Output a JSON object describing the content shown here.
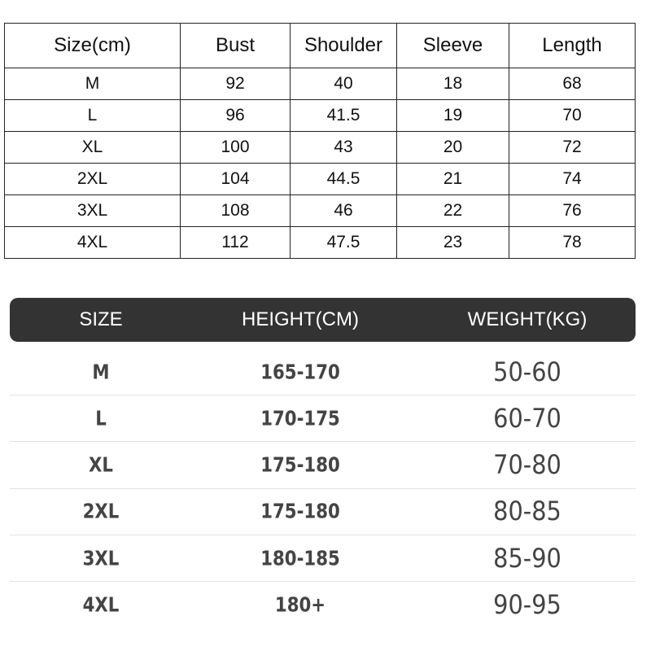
{
  "measurements": {
    "headers": [
      "Size(cm)",
      "Bust",
      "Shoulder",
      "Sleeve",
      "Length"
    ],
    "rows": [
      [
        "M",
        "92",
        "40",
        "18",
        "68"
      ],
      [
        "L",
        "96",
        "41.5",
        "19",
        "70"
      ],
      [
        "XL",
        "100",
        "43",
        "20",
        "72"
      ],
      [
        "2XL",
        "104",
        "44.5",
        "21",
        "74"
      ],
      [
        "3XL",
        "108",
        "46",
        "22",
        "76"
      ],
      [
        "4XL",
        "112",
        "47.5",
        "23",
        "78"
      ]
    ]
  },
  "fit_guide": {
    "headers": [
      "SIZE",
      "HEIGHT(CM)",
      "WEIGHT(KG)"
    ],
    "rows": [
      [
        "M",
        "165-170",
        "50-60"
      ],
      [
        "L",
        "170-175",
        "60-70"
      ],
      [
        "XL",
        "175-180",
        "70-80"
      ],
      [
        "2XL",
        "175-180",
        "80-85"
      ],
      [
        "3XL",
        "180-185",
        "85-90"
      ],
      [
        "4XL",
        "180+",
        "90-95"
      ]
    ],
    "header_color": "#333333"
  }
}
